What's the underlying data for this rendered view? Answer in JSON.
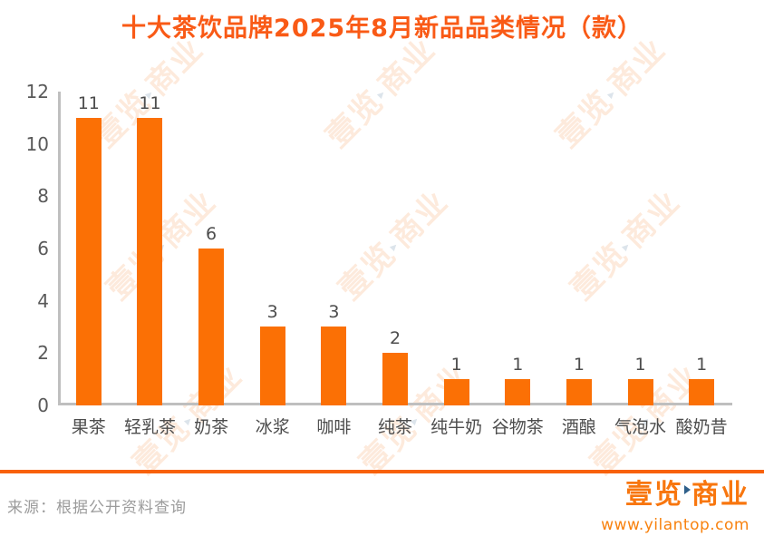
{
  "chart_data": {
    "type": "bar",
    "title": "十大茶饮品牌2025年8月新品品类情况（款）",
    "categories": [
      "果茶",
      "轻乳茶",
      "奶茶",
      "冰浆",
      "咖啡",
      "纯茶",
      "纯牛奶",
      "谷物茶",
      "酒酿",
      "气泡水",
      "酸奶昔"
    ],
    "values": [
      11,
      11,
      6,
      3,
      3,
      2,
      1,
      1,
      1,
      1,
      1
    ],
    "xlabel": "",
    "ylabel": "",
    "ylim": [
      0,
      12
    ],
    "ytick_step": 2,
    "yticks": [
      0,
      2,
      4,
      6,
      8,
      10,
      12
    ],
    "grid": false,
    "legend": "none",
    "value_labels": true
  },
  "colors": {
    "title": "#f95a16",
    "bar": "#fb7005",
    "axis": "#bfbfbf",
    "divider": "#f8610a",
    "brand": "#f8760e",
    "watermark": "#f8812d",
    "tick_text": "#595959",
    "label_text": "#4d4d4d",
    "source_text": "#9c9c9c"
  },
  "watermark": {
    "text": "壹览商业"
  },
  "footer": {
    "source": "来源：根据公开资料查询",
    "logo_text": "壹览商业",
    "logo_url": "www.yilantop.com"
  }
}
